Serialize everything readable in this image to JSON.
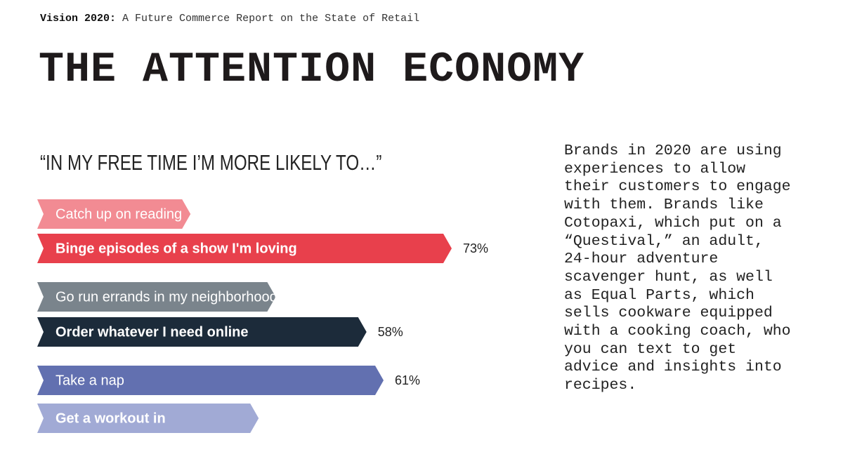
{
  "header": {
    "report": "Vision 2020:",
    "subtitle": "A Future Commerce Report on the State of Retail"
  },
  "title": "THE ATTENTION ECONOMY",
  "body": "Brands in 2020 are using experiences to allow their customers to engage with them. Brands like Cotopaxi, which put on a “Questival,” an adult, 24-hour adventure scavenger hunt, as well as Equal Parts, which sells cookware equipped with a cooking coach, who you can text to get advice and insights into recipes.",
  "chart_data": {
    "type": "bar",
    "title": "“IN MY FREE TIME I’M MORE LIKELY TO…”",
    "categories": [
      "Catch up on reading",
      "Binge episodes of a show I'm loving",
      "Go run errands in my neighborhood",
      "Order whatever I need online",
      "Take a nap",
      "Get a workout in"
    ],
    "values": [
      27,
      73,
      42,
      58,
      61,
      39
    ],
    "value_labels": [
      null,
      "73%",
      null,
      "58%",
      "61%",
      null
    ],
    "colors": [
      "#f28b93",
      "#e8404c",
      "#7a848c",
      "#1c2b3a",
      "#6270b0",
      "#a1aad5"
    ],
    "bold": [
      false,
      true,
      false,
      true,
      false,
      true
    ]
  }
}
